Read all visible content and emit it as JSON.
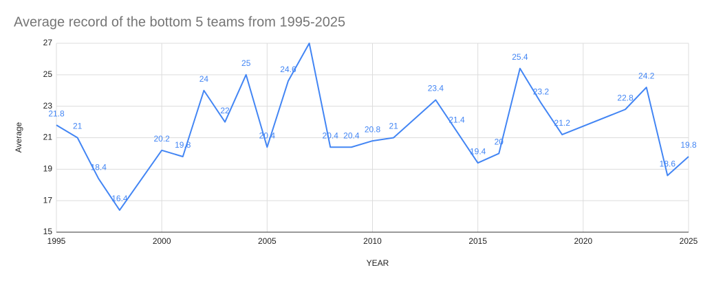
{
  "chart_data": {
    "type": "line",
    "title": "Average record of the bottom 5 teams from 1995-2025",
    "x_label": "YEAR",
    "y_label": "Average",
    "x": [
      1995,
      1996,
      1997,
      1998,
      2000,
      2001,
      2002,
      2003,
      2004,
      2005,
      2006,
      2007,
      2008,
      2009,
      2010,
      2011,
      2013,
      2014,
      2015,
      2016,
      2017,
      2018,
      2019,
      2022,
      2023,
      2024,
      2025
    ],
    "series": [
      {
        "name": "Average",
        "color": "#4285f4",
        "values": [
          21.8,
          21,
          18.4,
          16.4,
          20.2,
          19.8,
          24,
          22,
          25,
          20.4,
          24.6,
          27,
          20.4,
          20.4,
          20.8,
          21,
          23.4,
          21.4,
          19.4,
          20,
          25.4,
          23.2,
          21.2,
          22.8,
          24.2,
          18.6,
          19.8
        ]
      }
    ],
    "xlim": [
      1995,
      2025
    ],
    "xticks": [
      1995,
      2000,
      2005,
      2010,
      2015,
      2020,
      2025
    ],
    "ylim": [
      15,
      27
    ],
    "yticks": [
      15,
      17,
      19,
      21,
      23,
      25,
      27
    ],
    "grid": true
  }
}
